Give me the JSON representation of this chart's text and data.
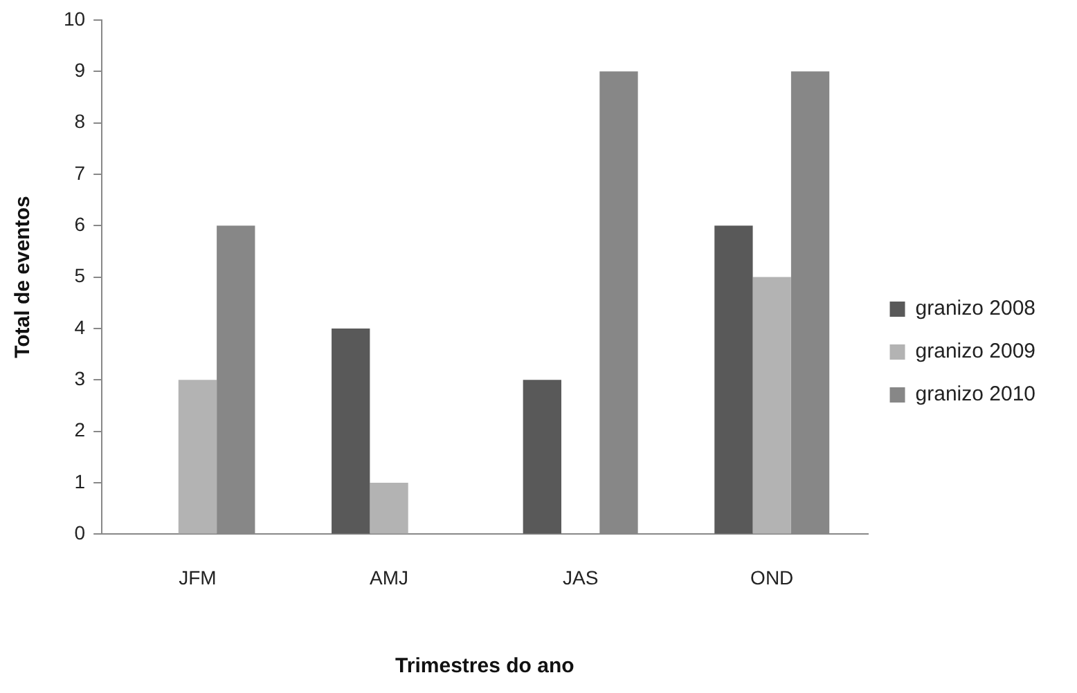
{
  "chart_data": {
    "type": "bar",
    "xlabel": "Trimestres do ano",
    "ylabel": "Total de eventos",
    "categories": [
      "JFM",
      "AMJ",
      "JAS",
      "OND"
    ],
    "series": [
      {
        "name": "granizo 2008",
        "color": "#595959",
        "values": [
          0,
          4,
          3,
          6
        ]
      },
      {
        "name": "granizo 2009",
        "color": "#b3b3b3",
        "values": [
          3,
          1,
          0,
          5
        ]
      },
      {
        "name": "granizo 2010",
        "color": "#878787",
        "values": [
          6,
          0,
          9,
          9
        ]
      }
    ],
    "ylim": [
      0,
      10
    ],
    "yticks": [
      0,
      1,
      2,
      3,
      4,
      5,
      6,
      7,
      8,
      9,
      10
    ],
    "grid": false,
    "legend": "right"
  }
}
